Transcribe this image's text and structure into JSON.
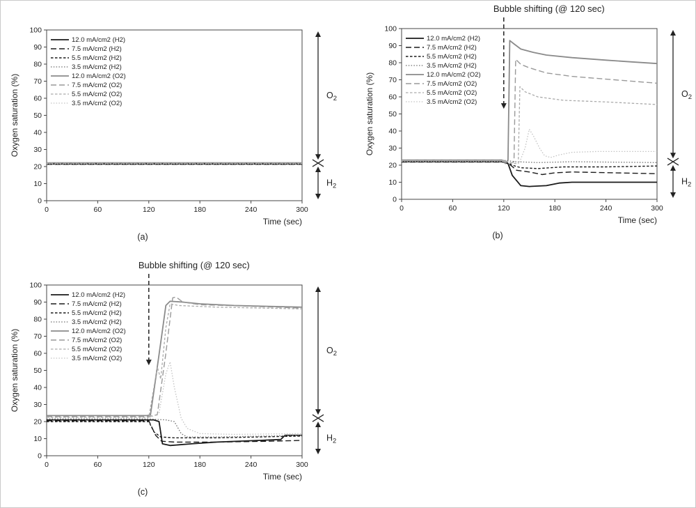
{
  "page": {
    "background": "#ffffff"
  },
  "chart_data": [
    {
      "type": "line",
      "caption": "(a)",
      "title": "",
      "bubble_annotation": null,
      "xlabel": "Time (sec)",
      "ylabel": "Oxygen saturation (%)",
      "xlim": [
        0,
        300
      ],
      "ylim": [
        0,
        100
      ],
      "xticks": [
        0,
        60,
        120,
        180,
        240,
        300
      ],
      "ytick_step": 10,
      "right_labels": {
        "upper": "O2",
        "lower": "H2",
        "split_percent": 22
      },
      "series": [
        {
          "name": "12.0 mA/cm2 (H2)",
          "color": "#1a1a1a",
          "dash": "solid",
          "width": 1.8,
          "points": [
            [
              0,
              21.5
            ],
            [
              300,
              21.5
            ]
          ]
        },
        {
          "name": "7.5 mA/cm2 (H2)",
          "color": "#1a1a1a",
          "dash": "dash",
          "width": 1.4,
          "points": [
            [
              0,
              21.3
            ],
            [
              300,
              21.3
            ]
          ]
        },
        {
          "name": "5.5 mA/cm2 (H2)",
          "color": "#1a1a1a",
          "dash": "shortdash",
          "width": 1.4,
          "points": [
            [
              0,
              21.8
            ],
            [
              300,
              21.8
            ]
          ]
        },
        {
          "name": "3.5 mA/cm2 (H2)",
          "color": "#6e6e6e",
          "dash": "dot",
          "width": 1.3,
          "points": [
            [
              0,
              22.0
            ],
            [
              300,
              22.0
            ]
          ]
        },
        {
          "name": "12.0 mA/cm2 (O2)",
          "color": "#8a8a8a",
          "dash": "solid",
          "width": 1.8,
          "points": [
            [
              0,
              22.2
            ],
            [
              300,
              22.2
            ]
          ]
        },
        {
          "name": "7.5 mA/cm2 (O2)",
          "color": "#999999",
          "dash": "dash",
          "width": 1.4,
          "points": [
            [
              0,
              22.0
            ],
            [
              300,
              22.0
            ]
          ]
        },
        {
          "name": "5.5 mA/cm2 (O2)",
          "color": "#aaaaaa",
          "dash": "shortdash",
          "width": 1.3,
          "points": [
            [
              0,
              21.9
            ],
            [
              300,
              21.9
            ]
          ]
        },
        {
          "name": "3.5 mA/cm2 (O2)",
          "color": "#c2c2c2",
          "dash": "dot",
          "width": 1.3,
          "points": [
            [
              0,
              21.6
            ],
            [
              300,
              21.6
            ]
          ]
        }
      ]
    },
    {
      "type": "line",
      "caption": "(b)",
      "title": "Bubble shifting (@ 120 sec)",
      "bubble_annotation": {
        "x": 120,
        "tip_percent": 53
      },
      "xlabel": "Time (sec)",
      "ylabel": "Oxygen saturation (%)",
      "xlim": [
        0,
        300
      ],
      "ylim": [
        0,
        100
      ],
      "xticks": [
        0,
        60,
        120,
        180,
        240,
        300
      ],
      "ytick_step": 10,
      "right_labels": {
        "upper": "O2",
        "lower": "H2",
        "split_percent": 22
      },
      "series": [
        {
          "name": "12.0 mA/cm2 (H2)",
          "color": "#1a1a1a",
          "dash": "solid",
          "width": 1.8,
          "points": [
            [
              0,
              22
            ],
            [
              118,
              22
            ],
            [
              125,
              21
            ],
            [
              130,
              14
            ],
            [
              140,
              8
            ],
            [
              150,
              7.5
            ],
            [
              170,
              8
            ],
            [
              185,
              9.5
            ],
            [
              200,
              10
            ],
            [
              300,
              10
            ]
          ]
        },
        {
          "name": "7.5 mA/cm2 (H2)",
          "color": "#1a1a1a",
          "dash": "dash",
          "width": 1.4,
          "points": [
            [
              0,
              21.8
            ],
            [
              120,
              21.8
            ],
            [
              128,
              20
            ],
            [
              135,
              17
            ],
            [
              150,
              16
            ],
            [
              165,
              14.5
            ],
            [
              180,
              15.5
            ],
            [
              200,
              16
            ],
            [
              250,
              15.5
            ],
            [
              300,
              15
            ]
          ]
        },
        {
          "name": "5.5 mA/cm2 (H2)",
          "color": "#1a1a1a",
          "dash": "shortdash",
          "width": 1.4,
          "points": [
            [
              0,
              22.3
            ],
            [
              120,
              22.3
            ],
            [
              130,
              20
            ],
            [
              140,
              18.5
            ],
            [
              160,
              18
            ],
            [
              190,
              19
            ],
            [
              240,
              19
            ],
            [
              300,
              19.5
            ]
          ]
        },
        {
          "name": "3.5 mA/cm2 (H2)",
          "color": "#6e6e6e",
          "dash": "dot",
          "width": 1.3,
          "points": [
            [
              0,
              22.8
            ],
            [
              120,
              22.8
            ],
            [
              135,
              22
            ],
            [
              160,
              21.5
            ],
            [
              200,
              22
            ],
            [
              300,
              21.5
            ]
          ]
        },
        {
          "name": "12.0 mA/cm2 (O2)",
          "color": "#8a8a8a",
          "dash": "solid",
          "width": 1.8,
          "points": [
            [
              0,
              23
            ],
            [
              118,
              23
            ],
            [
              122,
              21
            ],
            [
              125,
              23
            ],
            [
              127,
              93
            ],
            [
              132,
              91
            ],
            [
              140,
              88
            ],
            [
              155,
              86
            ],
            [
              170,
              84.5
            ],
            [
              200,
              83
            ],
            [
              240,
              81.5
            ],
            [
              270,
              80.5
            ],
            [
              300,
              79.5
            ]
          ]
        },
        {
          "name": "7.5 mA/cm2 (O2)",
          "color": "#999999",
          "dash": "dash",
          "width": 1.4,
          "points": [
            [
              0,
              22.8
            ],
            [
              120,
              22.8
            ],
            [
              128,
              21
            ],
            [
              132,
              22
            ],
            [
              134,
              82
            ],
            [
              140,
              79
            ],
            [
              150,
              77
            ],
            [
              170,
              74
            ],
            [
              200,
              72
            ],
            [
              250,
              70
            ],
            [
              300,
              68
            ]
          ]
        },
        {
          "name": "5.5 mA/cm2 (O2)",
          "color": "#aaaaaa",
          "dash": "shortdash",
          "width": 1.3,
          "points": [
            [
              0,
              22.5
            ],
            [
              120,
              22.5
            ],
            [
              132,
              21
            ],
            [
              137,
              21
            ],
            [
              139,
              66
            ],
            [
              145,
              63
            ],
            [
              160,
              60
            ],
            [
              190,
              58
            ],
            [
              240,
              57
            ],
            [
              300,
              55.5
            ]
          ]
        },
        {
          "name": "3.5 mA/cm2 (O2)",
          "color": "#c2c2c2",
          "dash": "dot",
          "width": 1.3,
          "points": [
            [
              0,
              22.2
            ],
            [
              120,
              22.2
            ],
            [
              138,
              21
            ],
            [
              145,
              30
            ],
            [
              150,
              41
            ],
            [
              155,
              37
            ],
            [
              162,
              30
            ],
            [
              168,
              25.5
            ],
            [
              175,
              24.5
            ],
            [
              185,
              26
            ],
            [
              200,
              27.5
            ],
            [
              230,
              28
            ],
            [
              300,
              28
            ]
          ]
        }
      ]
    },
    {
      "type": "line",
      "caption": "(c)",
      "title": "Bubble shifting (@ 120 sec)",
      "bubble_annotation": {
        "x": 120,
        "tip_percent": 53
      },
      "xlabel": "Time (sec)",
      "ylabel": "Oxygen saturation (%)",
      "xlim": [
        0,
        300
      ],
      "ylim": [
        0,
        100
      ],
      "xticks": [
        0,
        60,
        120,
        180,
        240,
        300
      ],
      "ytick_step": 10,
      "right_labels": {
        "upper": "O2",
        "lower": "H2",
        "split_percent": 22
      },
      "series": [
        {
          "name": "12.0 mA/cm2 (H2)",
          "color": "#1a1a1a",
          "dash": "solid",
          "width": 1.8,
          "points": [
            [
              0,
              21
            ],
            [
              120,
              21
            ],
            [
              126,
              21
            ],
            [
              132,
              20
            ],
            [
              136,
              7
            ],
            [
              145,
              6
            ],
            [
              170,
              7
            ],
            [
              200,
              8
            ],
            [
              250,
              9
            ],
            [
              275,
              9.5
            ],
            [
              280,
              12
            ],
            [
              300,
              12
            ]
          ]
        },
        {
          "name": "7.5 mA/cm2 (H2)",
          "color": "#1a1a1a",
          "dash": "dash",
          "width": 1.4,
          "points": [
            [
              0,
              20.5
            ],
            [
              120,
              20.5
            ],
            [
              128,
              12
            ],
            [
              135,
              8.5
            ],
            [
              150,
              8
            ],
            [
              200,
              8
            ],
            [
              260,
              8.5
            ],
            [
              300,
              9
            ]
          ]
        },
        {
          "name": "5.5 mA/cm2 (H2)",
          "color": "#1a1a1a",
          "dash": "shortdash",
          "width": 1.4,
          "points": [
            [
              0,
              20
            ],
            [
              120,
              20
            ],
            [
              126,
              14
            ],
            [
              134,
              11
            ],
            [
              150,
              10.5
            ],
            [
              200,
              10.5
            ],
            [
              300,
              11.5
            ]
          ]
        },
        {
          "name": "3.5 mA/cm2 (H2)",
          "color": "#6e6e6e",
          "dash": "dot",
          "width": 1.3,
          "points": [
            [
              0,
              21.5
            ],
            [
              120,
              21.5
            ],
            [
              140,
              21
            ],
            [
              150,
              20
            ],
            [
              158,
              13
            ],
            [
              165,
              11
            ],
            [
              200,
              11
            ],
            [
              260,
              11.5
            ],
            [
              300,
              12
            ]
          ]
        },
        {
          "name": "12.0 mA/cm2 (O2)",
          "color": "#8a8a8a",
          "dash": "solid",
          "width": 1.8,
          "points": [
            [
              0,
              23.5
            ],
            [
              118,
              23.5
            ],
            [
              122,
              24
            ],
            [
              128,
              45
            ],
            [
              135,
              70
            ],
            [
              140,
              88
            ],
            [
              145,
              90.5
            ],
            [
              160,
              90
            ],
            [
              180,
              89
            ],
            [
              220,
              88
            ],
            [
              300,
              87
            ]
          ]
        },
        {
          "name": "7.5 mA/cm2 (O2)",
          "color": "#999999",
          "dash": "dash",
          "width": 1.4,
          "points": [
            [
              0,
              23
            ],
            [
              120,
              23
            ],
            [
              130,
              24
            ],
            [
              140,
              60
            ],
            [
              148,
              92.5
            ],
            [
              152,
              93
            ],
            [
              160,
              90
            ],
            [
              180,
              88.5
            ],
            [
              240,
              87.5
            ],
            [
              300,
              86.5
            ]
          ]
        },
        {
          "name": "5.5 mA/cm2 (O2)",
          "color": "#aaaaaa",
          "dash": "shortdash",
          "width": 1.3,
          "points": [
            [
              0,
              22.5
            ],
            [
              120,
              22.5
            ],
            [
              126,
              40
            ],
            [
              130,
              52
            ],
            [
              134,
              45
            ],
            [
              140,
              75
            ],
            [
              145,
              89
            ],
            [
              155,
              88
            ],
            [
              200,
              87
            ],
            [
              300,
              86
            ]
          ]
        },
        {
          "name": "3.5 mA/cm2 (O2)",
          "color": "#c2c2c2",
          "dash": "dot",
          "width": 1.3,
          "points": [
            [
              0,
              22
            ],
            [
              120,
              22
            ],
            [
              132,
              25
            ],
            [
              140,
              48
            ],
            [
              145,
              55
            ],
            [
              150,
              40
            ],
            [
              158,
              22
            ],
            [
              165,
              16
            ],
            [
              180,
              13
            ],
            [
              220,
              12.5
            ],
            [
              300,
              13
            ]
          ]
        }
      ]
    }
  ]
}
